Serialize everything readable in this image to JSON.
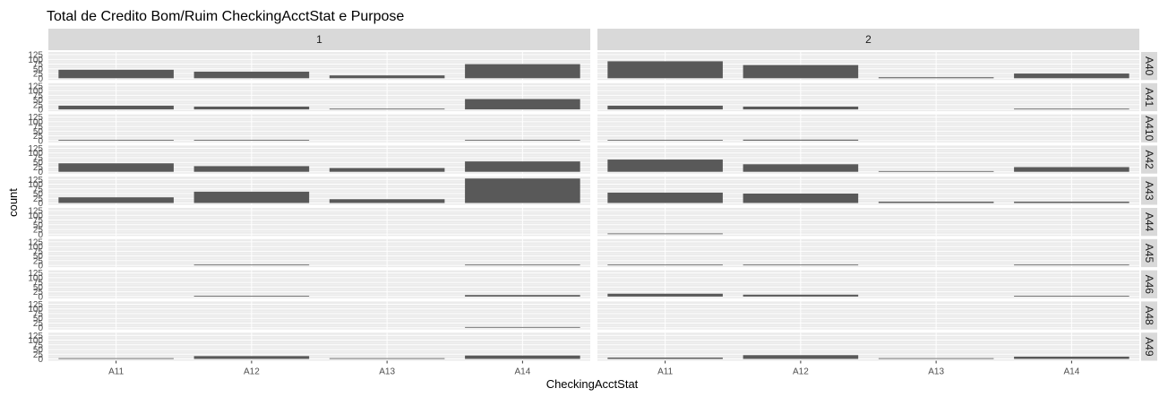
{
  "chart_data": {
    "type": "bar",
    "title": "Total de Credito Bom/Ruim CheckingAcctStat e Purpose",
    "xlabel": "CheckingAcctStat",
    "ylabel": "count",
    "categories": [
      "A11",
      "A12",
      "A13",
      "A14"
    ],
    "y_ticks": [
      0,
      25,
      50,
      75,
      100,
      125
    ],
    "ylim": [
      0,
      130
    ],
    "column_facets": [
      "1",
      "2"
    ],
    "row_facets": [
      "A40",
      "A41",
      "A410",
      "A42",
      "A43",
      "A44",
      "A45",
      "A46",
      "A48",
      "A49"
    ],
    "bar_color": "#595959",
    "panel_background": "#ebebeb",
    "strip_background": "#d9d9d9",
    "data": {
      "1": {
        "A40": [
          45,
          35,
          15,
          75
        ],
        "A41": [
          20,
          15,
          3,
          55
        ],
        "A410": [
          2,
          2,
          0,
          2
        ],
        "A42": [
          45,
          30,
          20,
          55
        ],
        "A43": [
          30,
          60,
          20,
          130
        ],
        "A44": [
          0,
          0,
          0,
          0
        ],
        "A45": [
          0,
          3,
          0,
          2
        ],
        "A46": [
          0,
          3,
          0,
          8
        ],
        "A48": [
          0,
          0,
          0,
          2
        ],
        "A49": [
          3,
          15,
          1,
          18
        ]
      },
      "2": {
        "A40": [
          90,
          70,
          5,
          25
        ],
        "A41": [
          20,
          15,
          0,
          3
        ],
        "A410": [
          2,
          5,
          0,
          0
        ],
        "A42": [
          65,
          40,
          3,
          25
        ],
        "A43": [
          55,
          50,
          7,
          7
        ],
        "A44": [
          3,
          0,
          0,
          0
        ],
        "A45": [
          3,
          3,
          0,
          2
        ],
        "A46": [
          15,
          10,
          0,
          2
        ],
        "A48": [
          0,
          0,
          0,
          0
        ],
        "A49": [
          7,
          20,
          3,
          12
        ]
      }
    }
  }
}
